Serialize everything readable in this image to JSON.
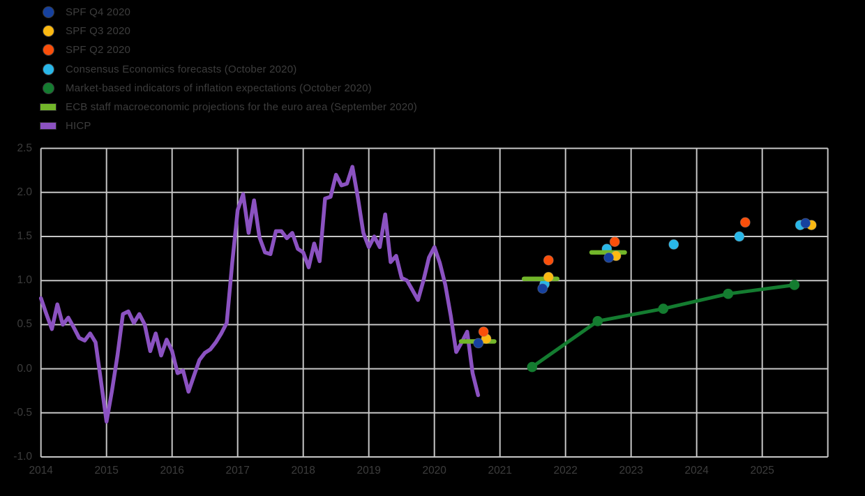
{
  "colors": {
    "background": "#000000",
    "text": "#3d3d3d",
    "grid": "#c6c6c6",
    "spf_q4": "#16419E",
    "spf_q3": "#FBB912",
    "spf_q2": "#FA4F0B",
    "consensus": "#29B7E8",
    "market": "#147C30",
    "ecb_projection": "#72B62A",
    "hicp": "#8B52C1"
  },
  "legend": {
    "items": [
      {
        "id": "spf_q4",
        "label": "SPF Q4 2020",
        "marker": "circle",
        "color": "#16419E"
      },
      {
        "id": "spf_q3",
        "label": "SPF Q3 2020",
        "marker": "circle",
        "color": "#FBB912"
      },
      {
        "id": "spf_q2",
        "label": "SPF Q2 2020",
        "marker": "circle",
        "color": "#FA4F0B"
      },
      {
        "id": "consensus",
        "label": "Consensus Economics forecasts (October 2020)",
        "marker": "circle",
        "color": "#29B7E8"
      },
      {
        "id": "market",
        "label": "Market-based indicators of inflation expectations (October 2020)",
        "marker": "circle",
        "color": "#147C30"
      },
      {
        "id": "ecb",
        "label": "ECB staff macroeconomic projections for the euro area (September 2020)",
        "marker": "bar",
        "color": "#72B62A"
      },
      {
        "id": "hicp",
        "label": "HICP",
        "marker": "bar",
        "color": "#8B52C1"
      }
    ]
  },
  "chart_data": {
    "type": "line",
    "title": "",
    "xlabel": "",
    "ylabel": "",
    "x_axis": {
      "tick_labels": [
        "2014",
        "2015",
        "2016",
        "2017",
        "2018",
        "2019",
        "2020",
        "2021",
        "2022",
        "2023",
        "2024",
        "2025"
      ],
      "range": [
        2014,
        2026
      ]
    },
    "y_axis": {
      "tick_labels": [
        "2.5",
        "2.0",
        "1.5",
        "1.0",
        "0.5",
        "0.0",
        "-0.5",
        "-1.0"
      ],
      "tick_values": [
        2.5,
        2.0,
        1.5,
        1.0,
        0.5,
        0.0,
        -0.5,
        -1.0
      ],
      "range": [
        -1.0,
        2.5
      ],
      "grid": true
    },
    "series": [
      {
        "id": "hicp",
        "name": "HICP",
        "type": "line",
        "color_key": "hicp",
        "start_year": 2014,
        "frequency": "monthly",
        "monthly_values": [
          0.8,
          0.62,
          0.45,
          0.73,
          0.5,
          0.58,
          0.47,
          0.35,
          0.32,
          0.4,
          0.3,
          -0.15,
          -0.6,
          -0.25,
          0.15,
          0.62,
          0.65,
          0.52,
          0.62,
          0.5,
          0.2,
          0.4,
          0.15,
          0.33,
          0.2,
          -0.05,
          -0.02,
          -0.26,
          -0.08,
          0.1,
          0.18,
          0.22,
          0.3,
          0.4,
          0.52,
          1.2,
          1.8,
          1.98,
          1.54,
          1.91,
          1.49,
          1.32,
          1.3,
          1.56,
          1.56,
          1.48,
          1.54,
          1.36,
          1.32,
          1.15,
          1.42,
          1.22,
          1.93,
          1.95,
          2.2,
          2.08,
          2.1,
          2.29,
          1.94,
          1.54,
          1.38,
          1.5,
          1.38,
          1.75,
          1.21,
          1.28,
          1.03,
          1.0,
          0.89,
          0.78,
          1.0,
          1.26,
          1.38,
          1.2,
          0.95,
          0.6,
          0.19,
          0.3,
          0.42,
          -0.05,
          -0.3
        ]
      },
      {
        "id": "market",
        "name": "Market-based indicators of inflation expectations (October 2020)",
        "type": "line_markers",
        "color_key": "market",
        "points": [
          [
            2021.49,
            0.02
          ],
          [
            2022.49,
            0.54
          ],
          [
            2023.49,
            0.68
          ],
          [
            2024.48,
            0.85
          ],
          [
            2025.49,
            0.95
          ]
        ]
      },
      {
        "id": "consensus",
        "name": "Consensus Economics forecasts (October 2020)",
        "type": "scatter",
        "color_key": "consensus",
        "points": [
          [
            2021.68,
            0.96
          ],
          [
            2022.63,
            1.36
          ],
          [
            2023.65,
            1.41
          ],
          [
            2024.65,
            1.5
          ],
          [
            2025.58,
            1.63
          ]
        ]
      },
      {
        "id": "ecb",
        "name": "ECB staff macroeconomic projections for the euro area (September 2020)",
        "type": "dash",
        "color_key": "ecb_projection",
        "half_width_years": 0.287,
        "points": [
          [
            2020.66,
            0.31
          ],
          [
            2021.62,
            1.02
          ],
          [
            2022.65,
            1.32
          ]
        ]
      },
      {
        "id": "spf_q3",
        "name": "SPF Q3 2020",
        "type": "scatter",
        "color_key": "spf_q3",
        "points": [
          [
            2020.79,
            0.34
          ],
          [
            2021.74,
            1.04
          ],
          [
            2022.77,
            1.28
          ],
          [
            2025.75,
            1.63
          ]
        ]
      },
      {
        "id": "spf_q2",
        "name": "SPF Q2 2020",
        "type": "scatter",
        "color_key": "spf_q2",
        "points": [
          [
            2020.75,
            0.42
          ],
          [
            2021.74,
            1.23
          ],
          [
            2022.75,
            1.44
          ],
          [
            2024.74,
            1.66
          ]
        ]
      },
      {
        "id": "spf_q4",
        "name": "SPF Q4 2020",
        "type": "scatter",
        "color_key": "spf_q4",
        "points": [
          [
            2020.67,
            0.29
          ],
          [
            2021.65,
            0.91
          ],
          [
            2022.66,
            1.26
          ],
          [
            2025.66,
            1.65
          ]
        ]
      }
    ]
  }
}
